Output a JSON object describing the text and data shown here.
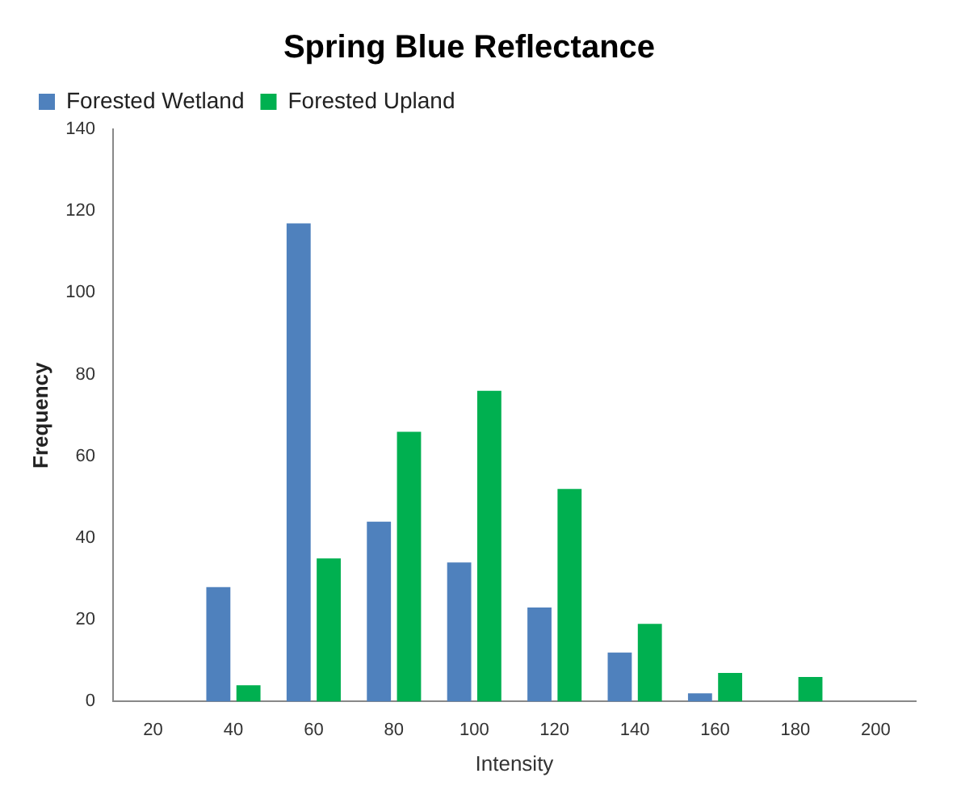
{
  "chart_data": {
    "type": "bar",
    "title": "Spring Blue Reflectance",
    "xlabel": "Intensity",
    "ylabel": "Frequency",
    "categories": [
      "20",
      "40",
      "60",
      "80",
      "100",
      "120",
      "140",
      "160",
      "180",
      "200"
    ],
    "series": [
      {
        "name": "Forested Wetland",
        "color": "#4f81bd",
        "values": [
          0,
          28,
          117,
          44,
          34,
          23,
          12,
          2,
          0,
          0
        ]
      },
      {
        "name": "Forested Upland",
        "color": "#00b050",
        "values": [
          0,
          4,
          35,
          66,
          76,
          52,
          19,
          7,
          6,
          0
        ]
      }
    ],
    "ylim": [
      0,
      140
    ],
    "yticks": [
      0,
      20,
      40,
      60,
      80,
      100,
      120,
      140
    ],
    "grid": false,
    "legend": "top"
  }
}
